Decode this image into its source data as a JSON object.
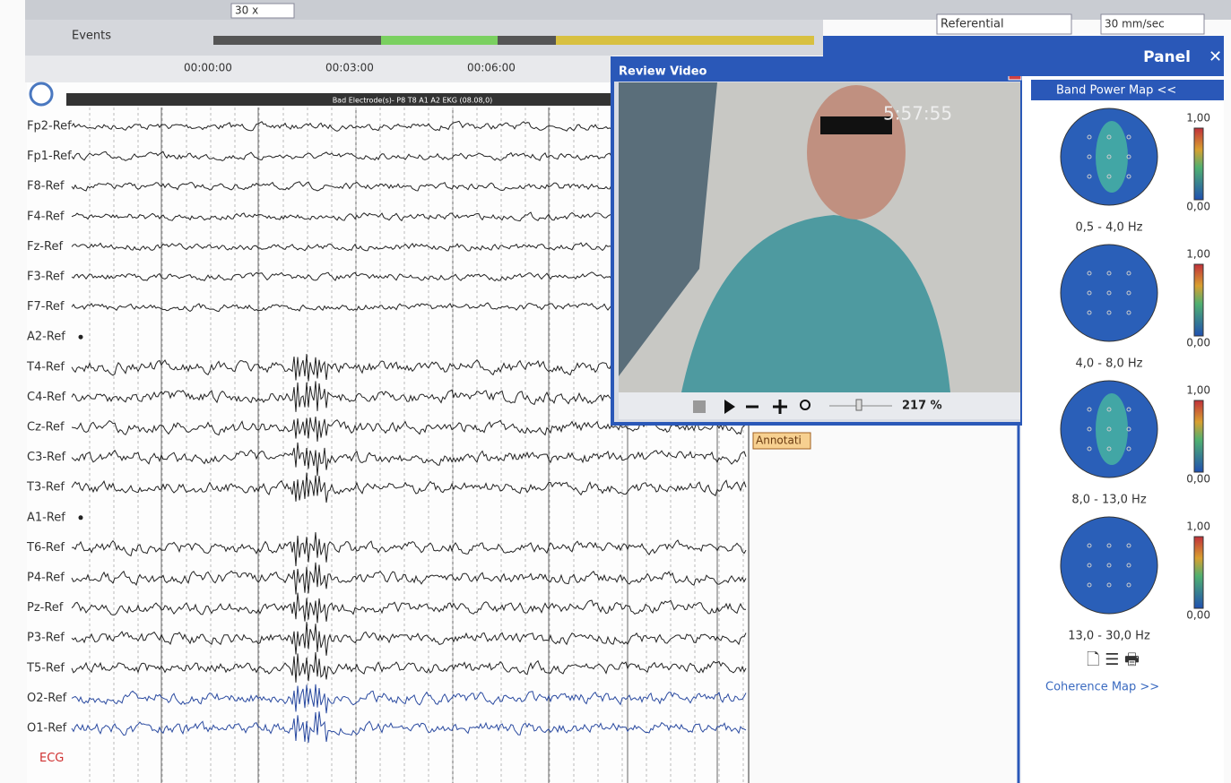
{
  "toolbar": {
    "zoom": "30 x",
    "montage": "Referential",
    "speed": "30 mm/sec"
  },
  "timeline": {
    "events_label": "Events",
    "times": [
      "00:00:00",
      "00:03:00",
      "00:06:00"
    ]
  },
  "eeg": {
    "header": "Bad Electrode(s)- P8 T8 A1 A2 EKG (08.08,0)",
    "channels": [
      "Fp2-Ref",
      "Fp1-Ref",
      "F8-Ref",
      "F4-Ref",
      "Fz-Ref",
      "F3-Ref",
      "F7-Ref",
      "A2-Ref",
      "T4-Ref",
      "C4-Ref",
      "Cz-Ref",
      "C3-Ref",
      "T3-Ref",
      "A1-Ref",
      "T6-Ref",
      "P4-Ref",
      "Pz-Ref",
      "P3-Ref",
      "T5-Ref",
      "O2-Ref",
      "O1-Ref",
      "ECG"
    ]
  },
  "video": {
    "title": "Review Video",
    "timestamp": "5:57:55",
    "zoom": "217 %"
  },
  "annotation": "Annotati",
  "panel": {
    "title": "Panel",
    "band_power_title": "Band Power Map <<",
    "maps": [
      {
        "band": "0,5 - 4,0 Hz",
        "max": "1,00",
        "min": "0,00"
      },
      {
        "band": "4,0 - 8,0 Hz",
        "max": "1,00",
        "min": "0,00"
      },
      {
        "band": "8,0 - 13,0 Hz",
        "max": "1,00",
        "min": "0,00"
      },
      {
        "band": "13,0 - 30,0 Hz",
        "max": "1,00",
        "min": "0,00"
      }
    ],
    "coherence": "Coherence Map >>"
  }
}
